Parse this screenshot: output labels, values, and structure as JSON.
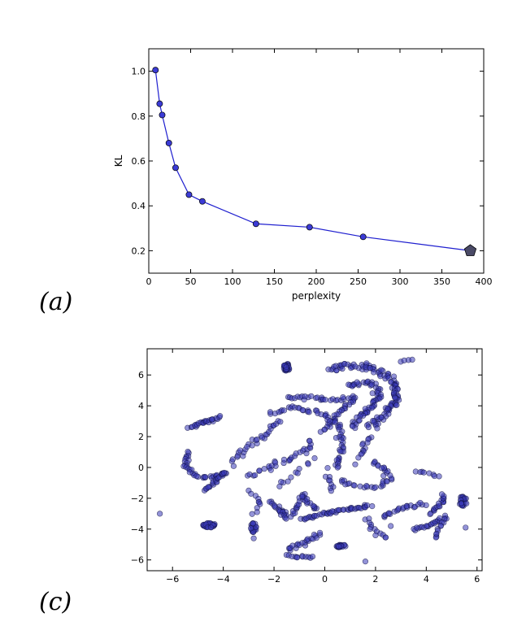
{
  "panels": [
    {
      "label": "(a)"
    },
    {
      "label": "(c)"
    }
  ],
  "colors": {
    "line": "#1f1fcf",
    "marker_fill": "#3b3bd6",
    "marker_edge": "#000000",
    "final_marker_fill": "#4a4a66",
    "scatter_fill": "#3b3bb8",
    "scatter_edge": "#101040"
  },
  "chart_data": [
    {
      "type": "line",
      "title": "",
      "xlabel": "perplexity",
      "ylabel": "KL",
      "xlim": [
        0,
        400
      ],
      "ylim": [
        0.1,
        1.1
      ],
      "xticks": [
        0,
        50,
        100,
        150,
        200,
        250,
        300,
        350,
        400
      ],
      "yticks": [
        0.2,
        0.4,
        0.6,
        0.8,
        1.0
      ],
      "xtick_labels": [
        "0",
        "50",
        "100",
        "150",
        "200",
        "250",
        "300",
        "350",
        "400"
      ],
      "ytick_labels": [
        "0.2",
        "0.4",
        "0.6",
        "0.8",
        "1.0"
      ],
      "grid": false,
      "x": [
        8,
        13,
        16,
        24,
        32,
        48,
        64,
        128,
        192,
        256
      ],
      "y": [
        1.005,
        0.855,
        0.805,
        0.68,
        0.57,
        0.45,
        0.42,
        0.32,
        0.305,
        0.262
      ],
      "final_point": {
        "x": 384,
        "y": 0.2
      }
    },
    {
      "type": "scatter",
      "title": "",
      "xlabel": "",
      "ylabel": "",
      "xlim": [
        -7,
        6.2
      ],
      "ylim": [
        -6.7,
        7.7
      ],
      "xticks": [
        -6,
        -4,
        -2,
        0,
        2,
        4,
        6
      ],
      "yticks": [
        -6,
        -4,
        -2,
        0,
        2,
        4,
        6
      ],
      "xtick_labels": [
        "−6",
        "−4",
        "−2",
        "0",
        "2",
        "4",
        "6"
      ],
      "ytick_labels": [
        "−6",
        "−4",
        "−2",
        "0",
        "2",
        "4",
        "6"
      ],
      "grid": false,
      "clusters": [
        {
          "type": "blob",
          "cx": -1.5,
          "cy": 6.5,
          "rx": 0.12,
          "ry": 0.25,
          "n": 30
        },
        {
          "type": "blob",
          "cx": -4.55,
          "cy": -3.75,
          "rx": 0.25,
          "ry": 0.15,
          "n": 30
        },
        {
          "type": "blob",
          "cx": 0.65,
          "cy": -5.1,
          "rx": 0.2,
          "ry": 0.1,
          "n": 20
        },
        {
          "type": "blob",
          "cx": 5.45,
          "cy": -2.2,
          "rx": 0.15,
          "ry": 0.35,
          "n": 25
        },
        {
          "type": "blob",
          "cx": -2.8,
          "cy": -3.9,
          "rx": 0.12,
          "ry": 0.3,
          "n": 18
        },
        {
          "type": "curve",
          "pts": [
            [
              0.1,
              6.35
            ],
            [
              1.0,
              6.6
            ],
            [
              2.0,
              6.5
            ],
            [
              2.7,
              5.5
            ],
            [
              2.9,
              4.4
            ],
            [
              2.3,
              3.3
            ],
            [
              1.7,
              2.6
            ]
          ],
          "n": 110,
          "spread": 0.22
        },
        {
          "type": "curve",
          "pts": [
            [
              0.9,
              5.3
            ],
            [
              1.8,
              5.5
            ],
            [
              2.2,
              4.6
            ],
            [
              1.6,
              3.6
            ],
            [
              1.1,
              2.6
            ]
          ],
          "n": 60,
          "spread": 0.15
        },
        {
          "type": "curve",
          "pts": [
            [
              -1.5,
              4.6
            ],
            [
              -0.5,
              4.5
            ],
            [
              0.4,
              4.4
            ],
            [
              1.2,
              4.5
            ],
            [
              0.4,
              3.3
            ],
            [
              -0.1,
              2.3
            ]
          ],
          "n": 55,
          "spread": 0.12
        },
        {
          "type": "curve",
          "pts": [
            [
              -2.2,
              3.5
            ],
            [
              -1.2,
              3.9
            ],
            [
              -0.1,
              3.5
            ],
            [
              0.6,
              2.6
            ],
            [
              0.7,
              1.0
            ],
            [
              0.3,
              -0.2
            ]
          ],
          "n": 60,
          "spread": 0.14
        },
        {
          "type": "curve",
          "pts": [
            [
              -5.3,
              2.6
            ],
            [
              -4.6,
              3.0
            ],
            [
              -4.1,
              3.3
            ]
          ],
          "n": 25,
          "spread": 0.1
        },
        {
          "type": "curve",
          "pts": [
            [
              -5.4,
              1.0
            ],
            [
              -5.5,
              0.0
            ],
            [
              -5.0,
              -0.6
            ],
            [
              -4.4,
              -0.6
            ],
            [
              -3.9,
              -0.3
            ]
          ],
          "n": 35,
          "spread": 0.1
        },
        {
          "type": "curve",
          "pts": [
            [
              -4.7,
              -1.5
            ],
            [
              -4.3,
              -0.9
            ],
            [
              -3.9,
              -0.3
            ]
          ],
          "n": 20,
          "spread": 0.1
        },
        {
          "type": "curve",
          "pts": [
            [
              -3.6,
              0.3
            ],
            [
              -3.0,
              1.3
            ],
            [
              -2.4,
              2.2
            ],
            [
              -1.7,
              3.0
            ]
          ],
          "n": 30,
          "spread": 0.18
        },
        {
          "type": "curve",
          "pts": [
            [
              -3.0,
              -0.5
            ],
            [
              -2.3,
              -0.1
            ],
            [
              -1.6,
              0.4
            ],
            [
              -0.9,
              0.9
            ],
            [
              -0.5,
              1.8
            ]
          ],
          "n": 32,
          "spread": 0.18
        },
        {
          "type": "curve",
          "pts": [
            [
              -1.8,
              -2.6
            ],
            [
              -1.4,
              -3.2
            ],
            [
              -1.1,
              -2.5
            ],
            [
              -0.8,
              -1.6
            ]
          ],
          "n": 22,
          "spread": 0.12
        },
        {
          "type": "curve",
          "pts": [
            [
              -2.2,
              -2.2
            ],
            [
              -1.8,
              -2.8
            ],
            [
              -1.5,
              -3.3
            ]
          ],
          "n": 14,
          "spread": 0.1
        },
        {
          "type": "curve",
          "pts": [
            [
              -0.3,
              -2.8
            ],
            [
              -0.6,
              -2.3
            ],
            [
              -0.9,
              -1.8
            ]
          ],
          "n": 12,
          "spread": 0.1
        },
        {
          "type": "curve",
          "pts": [
            [
              -0.9,
              -3.4
            ],
            [
              0.0,
              -3.0
            ],
            [
              0.9,
              -2.7
            ],
            [
              1.9,
              -2.5
            ]
          ],
          "n": 45,
          "spread": 0.1
        },
        {
          "type": "curve",
          "pts": [
            [
              0.6,
              -0.8
            ],
            [
              1.3,
              -1.2
            ],
            [
              2.1,
              -1.3
            ],
            [
              2.6,
              -0.8
            ],
            [
              2.3,
              0.0
            ],
            [
              1.8,
              0.4
            ]
          ],
          "n": 35,
          "spread": 0.12
        },
        {
          "type": "curve",
          "pts": [
            [
              1.8,
              2.0
            ],
            [
              1.5,
              1.2
            ],
            [
              1.3,
              0.6
            ]
          ],
          "n": 12,
          "spread": 0.1
        },
        {
          "type": "curve",
          "pts": [
            [
              2.3,
              -3.2
            ],
            [
              2.8,
              -2.8
            ],
            [
              3.4,
              -2.5
            ],
            [
              4.0,
              -2.4
            ]
          ],
          "n": 22,
          "spread": 0.12
        },
        {
          "type": "curve",
          "pts": [
            [
              3.5,
              -4.0
            ],
            [
              4.0,
              -3.8
            ],
            [
              4.5,
              -3.5
            ],
            [
              4.8,
              -3.2
            ]
          ],
          "n": 22,
          "spread": 0.12
        },
        {
          "type": "curve",
          "pts": [
            [
              4.1,
              -3.0
            ],
            [
              4.5,
              -2.5
            ],
            [
              4.7,
              -2.1
            ],
            [
              4.6,
              -1.7
            ]
          ],
          "n": 18,
          "spread": 0.1
        },
        {
          "type": "curve",
          "pts": [
            [
              4.7,
              -3.3
            ],
            [
              4.5,
              -4.0
            ],
            [
              4.3,
              -4.7
            ]
          ],
          "n": 10,
          "spread": 0.08
        },
        {
          "type": "curve",
          "pts": [
            [
              1.6,
              -3.3
            ],
            [
              2.0,
              -4.0
            ],
            [
              2.4,
              -4.7
            ]
          ],
          "n": 12,
          "spread": 0.1
        },
        {
          "type": "curve",
          "pts": [
            [
              -1.5,
              -5.4
            ],
            [
              -1.0,
              -5.0
            ],
            [
              -0.5,
              -4.6
            ],
            [
              -0.1,
              -4.3
            ]
          ],
          "n": 22,
          "spread": 0.12
        },
        {
          "type": "curve",
          "pts": [
            [
              -1.5,
              -5.7
            ],
            [
              -1.0,
              -5.8
            ],
            [
              -0.4,
              -5.8
            ]
          ],
          "n": 12,
          "spread": 0.08
        },
        {
          "type": "curve",
          "pts": [
            [
              -3.0,
              -1.5
            ],
            [
              -2.5,
              -2.3
            ],
            [
              -2.9,
              -3.1
            ]
          ],
          "n": 10,
          "spread": 0.1
        },
        {
          "type": "curve",
          "pts": [
            [
              0.1,
              -0.5
            ],
            [
              0.3,
              -1.0
            ],
            [
              0.2,
              -1.6
            ]
          ],
          "n": 8,
          "spread": 0.08
        },
        {
          "type": "curve",
          "pts": [
            [
              3.5,
              -0.3
            ],
            [
              4.2,
              -0.4
            ],
            [
              4.6,
              -0.6
            ]
          ],
          "n": 8,
          "spread": 0.08
        },
        {
          "type": "curve",
          "pts": [
            [
              3.0,
              6.9
            ],
            [
              3.5,
              7.0
            ]
          ],
          "n": 4,
          "spread": 0.06
        },
        {
          "type": "curve",
          "pts": [
            [
              -0.6,
              0.3
            ],
            [
              -1.3,
              -0.6
            ],
            [
              -2.0,
              -1.3
            ]
          ],
          "n": 10,
          "spread": 0.15
        },
        {
          "type": "points",
          "pts": [
            [
              -6.5,
              -3.0
            ],
            [
              1.6,
              -6.1
            ],
            [
              5.55,
              -3.9
            ],
            [
              2.1,
              0.1
            ],
            [
              -2.8,
              -4.6
            ],
            [
              1.2,
              0.2
            ],
            [
              -0.4,
              0.6
            ],
            [
              2.0,
              -4.4
            ],
            [
              2.6,
              -3.8
            ],
            [
              4.4,
              -4.3
            ]
          ]
        }
      ]
    }
  ]
}
